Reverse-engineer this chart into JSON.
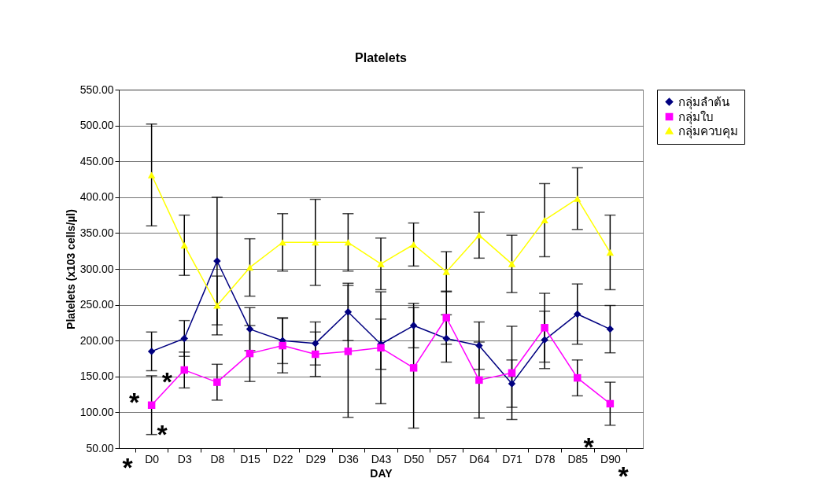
{
  "chart_data": {
    "type": "line",
    "title": "Platelets",
    "xlabel": "DAY",
    "ylabel": "Platelets (x103 cells/µl)",
    "categories": [
      "D0",
      "D3",
      "D8",
      "D15",
      "D22",
      "D29",
      "D36",
      "D43",
      "D50",
      "D57",
      "D64",
      "D71",
      "D78",
      "D85",
      "D90"
    ],
    "series": [
      {
        "name": "กลุ่มลำต้น",
        "color": "#000080",
        "marker": "diamond",
        "values": [
          185,
          203,
          311,
          216,
          200,
          196,
          240,
          195,
          221,
          203,
          193,
          140,
          201,
          237,
          216
        ],
        "errors": [
          27,
          25,
          89,
          30,
          32,
          30,
          40,
          35,
          31,
          33,
          33,
          33,
          40,
          42,
          33
        ]
      },
      {
        "name": "กลุ่มใบ",
        "color": "#ff00ff",
        "marker": "square",
        "values": [
          110,
          159,
          142,
          182,
          193,
          181,
          185,
          190,
          162,
          232,
          145,
          155,
          218,
          148,
          112
        ],
        "errors": [
          41,
          25,
          25,
          39,
          38,
          31,
          92,
          78,
          84,
          37,
          53,
          65,
          48,
          25,
          30
        ]
      },
      {
        "name": "กลุ่มควบคุม",
        "color": "#ffff00",
        "marker": "triangle",
        "values": [
          431,
          333,
          249,
          302,
          337,
          337,
          337,
          307,
          334,
          296,
          347,
          307,
          368,
          398,
          323
        ],
        "errors": [
          71,
          42,
          41,
          40,
          40,
          60,
          40,
          36,
          30,
          28,
          32,
          40,
          51,
          43,
          52
        ]
      }
    ],
    "ylim": [
      50,
      550
    ],
    "yticks": [
      {
        "value": 50,
        "label": "50.00"
      },
      {
        "value": 100,
        "label": "100.00"
      },
      {
        "value": 150,
        "label": "150.00"
      },
      {
        "value": 200,
        "label": "200.00"
      },
      {
        "value": 250,
        "label": "250.00"
      },
      {
        "value": 300,
        "label": "300.00"
      },
      {
        "value": 350,
        "label": "350.00"
      },
      {
        "value": 400,
        "label": "400.00"
      },
      {
        "value": 450,
        "label": "450.00"
      },
      {
        "value": 500,
        "label": "500.00"
      },
      {
        "value": 550,
        "label": "550.00"
      }
    ],
    "grid": "y",
    "legend": "right",
    "annotations": [
      {
        "text": "*",
        "x": "D0",
        "y": 124
      },
      "*",
      {
        "text": "*",
        "x": "D3",
        "y": 152
      },
      "*",
      "*",
      "*"
    ]
  }
}
